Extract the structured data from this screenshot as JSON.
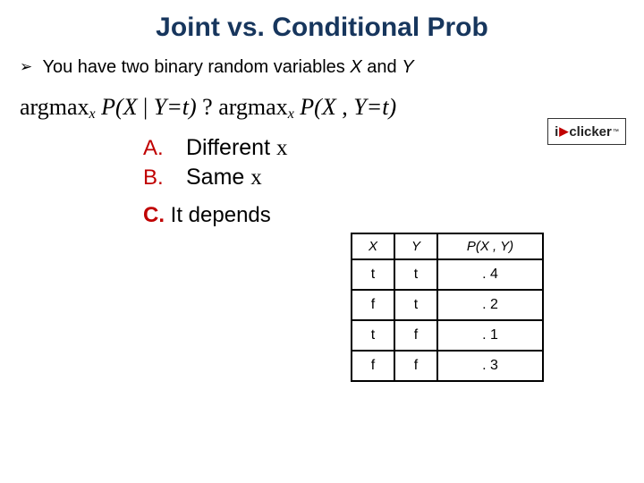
{
  "title": "Joint vs. Conditional Prob",
  "bullet": {
    "arrow": "➢",
    "pre": "You have two binary random variables ",
    "x": "X",
    "mid": " and ",
    "y": "Y"
  },
  "formula": {
    "argmax1": "argmax",
    "subx1": "x",
    "p1a": "P(X ",
    "bar": "| ",
    "yt1": "Y=t)",
    "q": " ? ",
    "argmax2": "argmax",
    "subx2": "x",
    "p2a": "P(X ",
    "comma": ", ",
    "yt2": "Y=t)"
  },
  "options": {
    "a_label": "A.",
    "a_text_prefix": "Different ",
    "a_text_x": "x",
    "b_label": "B.",
    "b_text_prefix": "Same ",
    "b_text_x": "x",
    "c_label": "C.",
    "c_text": " It depends"
  },
  "iclicker": {
    "i": "i",
    "arrow": "▶",
    "clicker": "clicker",
    "tm": "™"
  },
  "table": {
    "headers": {
      "x": "X",
      "y": "Y",
      "pxy": "P(X , Y)"
    },
    "rows": [
      {
        "x": "t",
        "y": "t",
        "p": ". 4"
      },
      {
        "x": "f",
        "y": "t",
        "p": ". 2"
      },
      {
        "x": "t",
        "y": "f",
        "p": ". 1"
      },
      {
        "x": "f",
        "y": "f",
        "p": ". 3"
      }
    ]
  }
}
